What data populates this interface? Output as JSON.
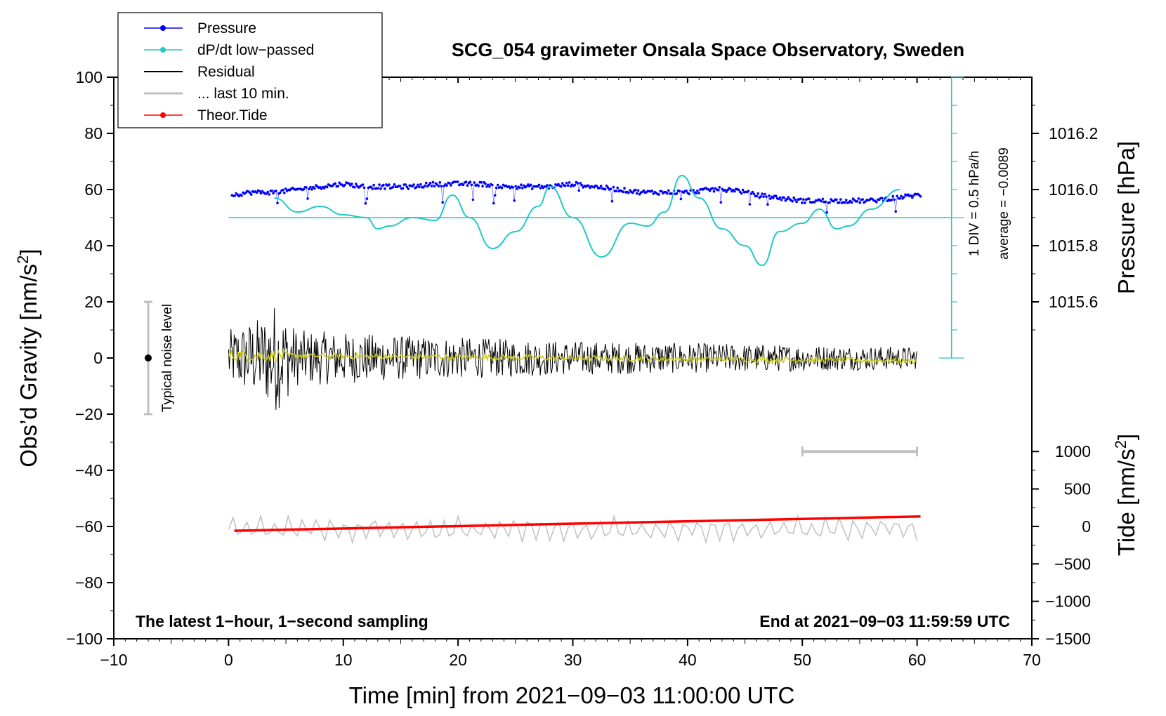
{
  "chart_data": {
    "type": "line",
    "title": "SCG_054 gravimeter Onsala Space Observatory, Sweden",
    "xlabel": "Time [min] from 2021−09−03 11:00:00 UTC",
    "ylabel_left": "Obs’d Gravity [nm/s",
    "ylabel_right_top": "Pressure [hPa]",
    "ylabel_right_bottom": "Tide [nm/s",
    "sup2": "2",
    "sup_close": "]",
    "xlim": [
      -10,
      70
    ],
    "ylim": [
      -100,
      100
    ],
    "x_ticks": [
      "−10",
      "0",
      "10",
      "20",
      "30",
      "40",
      "50",
      "60",
      "70"
    ],
    "y_ticks": [
      "−100",
      "−80",
      "−60",
      "−40",
      "−20",
      "0",
      "20",
      "40",
      "60",
      "80",
      "100"
    ],
    "pressure_ticks": [
      "1015.6",
      "1015.8",
      "1016.0",
      "1016.2"
    ],
    "pressure_tick_values": [
      1015.6,
      1015.8,
      1016.0,
      1016.2
    ],
    "tide_ticks": [
      "−1500",
      "−1000",
      "−500",
      "0",
      "500",
      "1000"
    ],
    "tide_tick_values": [
      -1500,
      -1000,
      -500,
      0,
      500,
      1000
    ],
    "pressure_mapping": {
      "hpa_at_gravity_60": 1016.0,
      "gravity_per_hpa": 100
    },
    "tide_mapping": {
      "tide_at_gravity_minus_100": -1500,
      "tide_at_gravity_minus_33.3": 1000
    },
    "legend": [
      {
        "label": "Pressure",
        "color": "#0000ff",
        "style": "line-dot"
      },
      {
        "label": "dP/dt low−passed",
        "color": "#22c8c8",
        "style": "line-dot"
      },
      {
        "label": "Residual",
        "color": "#000000",
        "style": "line"
      },
      {
        "label": "... last 10 min.",
        "color": "#c0c0c0",
        "style": "line"
      },
      {
        "label": "Theor.Tide",
        "color": "#ff0000",
        "style": "line-dot"
      }
    ],
    "series": [
      {
        "name": "Pressure",
        "unit": "hPa",
        "color": "#0000ff",
        "x": [
          0,
          2,
          4,
          6,
          8,
          10,
          12,
          14,
          16,
          18,
          20,
          22,
          24,
          26,
          28,
          30,
          32,
          34,
          36,
          38,
          40,
          42,
          44,
          46,
          48,
          50,
          52,
          54,
          56,
          58,
          60
        ],
        "values": [
          1015.98,
          1015.99,
          1015.99,
          1016.0,
          1016.01,
          1016.02,
          1016.01,
          1016.01,
          1016.01,
          1016.02,
          1016.02,
          1016.02,
          1016.01,
          1016.01,
          1016.01,
          1016.02,
          1016.01,
          1016.0,
          1015.99,
          1015.99,
          1015.99,
          1016.0,
          1016.0,
          1015.98,
          1015.97,
          1015.96,
          1015.96,
          1015.96,
          1015.96,
          1015.97,
          1015.98
        ]
      },
      {
        "name": "dP/dt low−passed",
        "unit": "hPa/h (1 DIV = 0.5 hPa/h, zero at gravity 50)",
        "color": "#22c8c8",
        "x": [
          4,
          6,
          8,
          10,
          12,
          13,
          14,
          16,
          18,
          19.5,
          21,
          23,
          25,
          27,
          28,
          30,
          32.5,
          35,
          36.5,
          38,
          39.5,
          41,
          43,
          45,
          46.5,
          48,
          50,
          51.5,
          53,
          54,
          56,
          58.5
        ],
        "values": [
          57,
          52,
          54,
          51,
          50,
          46,
          47,
          50,
          49,
          58,
          50,
          39,
          45,
          54,
          61,
          50,
          36,
          48,
          47,
          52,
          65,
          57,
          46,
          40,
          33,
          45,
          48,
          53,
          46,
          47,
          53,
          60
        ]
      },
      {
        "name": "Residual",
        "unit": "nm/s2",
        "color": "#000000",
        "envelope_by_minute": [
          [
            0,
            10
          ],
          [
            3,
            15
          ],
          [
            4,
            20
          ],
          [
            6,
            10
          ],
          [
            15,
            8
          ],
          [
            30,
            6
          ],
          [
            45,
            5
          ],
          [
            60,
            4
          ]
        ]
      },
      {
        "name": "Residual (smoothed)",
        "unit": "nm/s2",
        "color": "#cccc22",
        "x": [
          0,
          60
        ],
        "values": [
          1,
          -1
        ]
      },
      {
        "name": "... last 10 min.",
        "unit": "nm/s2",
        "color": "#c0c0c0",
        "x": [
          50,
          60
        ],
        "values": [
          -33.3,
          -33.3
        ]
      },
      {
        "name": "Theor.Tide",
        "unit": "nm/s2",
        "color": "#ff0000",
        "x": [
          0,
          60
        ],
        "values": [
          -58,
          133
        ]
      },
      {
        "name": "Gray trace",
        "unit": "nm/s2",
        "color": "#c0c0c0",
        "x": [
          0,
          60
        ],
        "baseline": -61,
        "amplitude": 4
      }
    ],
    "dpdt_scale_label": "1 DIV = 0.5 hPa/h",
    "dpdt_average_label": "average = −0.0089",
    "noise_label": "Typical noise level",
    "noise_bar": {
      "x": -7,
      "center": 0,
      "low": -20,
      "high": 20
    },
    "note_left": "The latest 1−hour, 1−second sampling",
    "note_right": "End at 2021−09−03 11:59:59 UTC"
  }
}
